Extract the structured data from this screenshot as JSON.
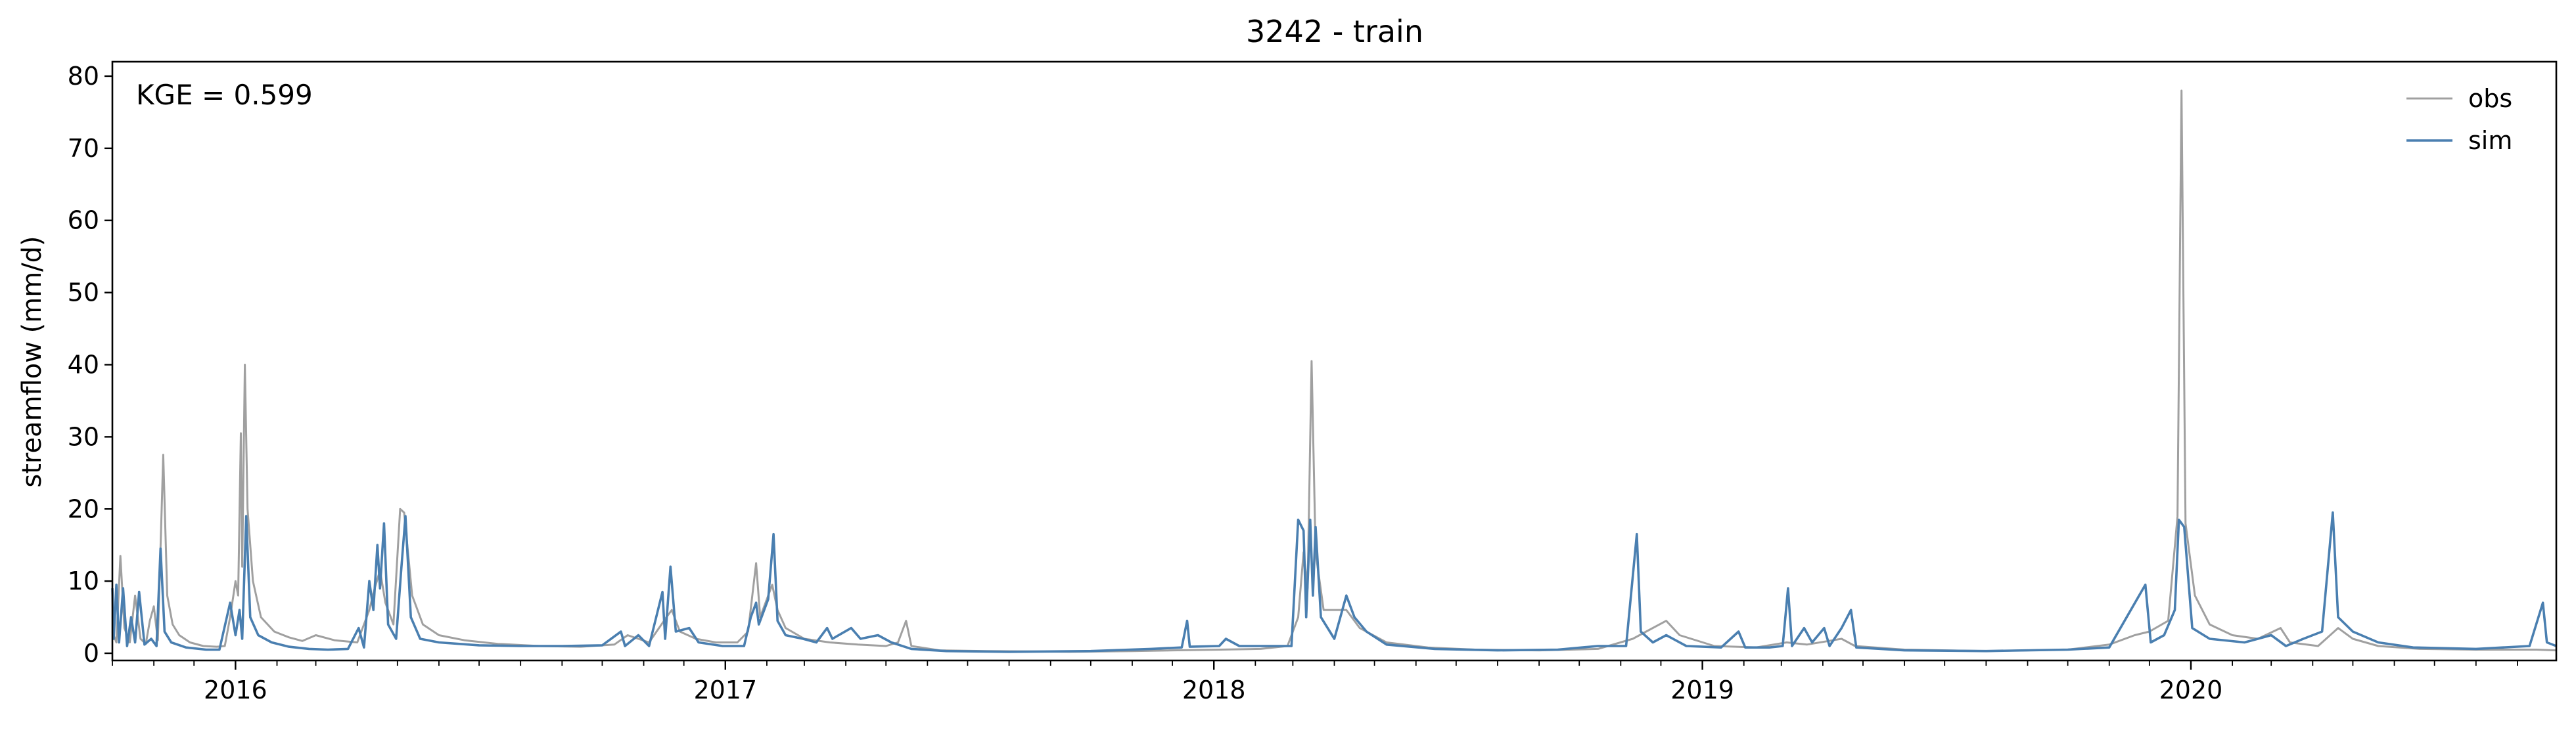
{
  "chart_data": {
    "type": "line",
    "title": "3242 - train",
    "xlabel": "",
    "ylabel": "streamflow (mm/d)",
    "annotation": "KGE = 0.599",
    "x_axis": {
      "type": "date",
      "range": [
        "2015-10-01",
        "2020-09-30"
      ],
      "tick_labels": [
        "2016",
        "2017",
        "2018",
        "2019",
        "2020"
      ],
      "tick_dates": [
        "2016-01-01",
        "2017-01-01",
        "2018-01-01",
        "2019-01-01",
        "2020-01-01"
      ],
      "minor_ticks": "monthly"
    },
    "y_axis": {
      "range": [
        -1,
        82
      ],
      "ticks": [
        0,
        10,
        20,
        30,
        40,
        50,
        60,
        70,
        80
      ],
      "tick_labels": [
        "0",
        "10",
        "20",
        "30",
        "40",
        "50",
        "60",
        "70",
        "80"
      ]
    },
    "grid": false,
    "legend": {
      "position": "top-right",
      "frame": false
    },
    "series": [
      {
        "name": "obs",
        "color": "#a0a0a0",
        "points": [
          [
            "2015-10-01",
            3.0
          ],
          [
            "2015-10-04",
            1.5
          ],
          [
            "2015-10-07",
            13.5
          ],
          [
            "2015-10-10",
            3.5
          ],
          [
            "2015-10-14",
            1.5
          ],
          [
            "2015-10-18",
            8.0
          ],
          [
            "2015-10-22",
            2.0
          ],
          [
            "2015-10-26",
            1.3
          ],
          [
            "2015-10-29",
            4.5
          ],
          [
            "2015-11-01",
            6.5
          ],
          [
            "2015-11-04",
            1.8
          ],
          [
            "2015-11-08",
            27.5
          ],
          [
            "2015-11-11",
            8.0
          ],
          [
            "2015-11-15",
            4.0
          ],
          [
            "2015-11-20",
            2.5
          ],
          [
            "2015-11-28",
            1.5
          ],
          [
            "2015-12-08",
            1.0
          ],
          [
            "2015-12-18",
            0.9
          ],
          [
            "2015-12-24",
            1.0
          ],
          [
            "2015-12-28",
            5.0
          ],
          [
            "2016-01-01",
            10.0
          ],
          [
            "2016-01-03",
            8.0
          ],
          [
            "2016-01-05",
            30.5
          ],
          [
            "2016-01-06",
            12.0
          ],
          [
            "2016-01-08",
            40.0
          ],
          [
            "2016-01-10",
            20.0
          ],
          [
            "2016-01-14",
            10.0
          ],
          [
            "2016-01-20",
            5.0
          ],
          [
            "2016-01-30",
            3.0
          ],
          [
            "2016-02-10",
            2.2
          ],
          [
            "2016-02-20",
            1.7
          ],
          [
            "2016-03-01",
            2.5
          ],
          [
            "2016-03-15",
            1.8
          ],
          [
            "2016-04-01",
            1.5
          ],
          [
            "2016-04-10",
            6.0
          ],
          [
            "2016-04-14",
            9.0
          ],
          [
            "2016-04-18",
            11.5
          ],
          [
            "2016-04-22",
            7.0
          ],
          [
            "2016-04-28",
            4.0
          ],
          [
            "2016-05-03",
            20.0
          ],
          [
            "2016-05-06",
            19.5
          ],
          [
            "2016-05-12",
            8.0
          ],
          [
            "2016-05-20",
            4.0
          ],
          [
            "2016-06-01",
            2.5
          ],
          [
            "2016-06-20",
            1.8
          ],
          [
            "2016-07-15",
            1.3
          ],
          [
            "2016-08-15",
            1.0
          ],
          [
            "2016-09-15",
            0.9
          ],
          [
            "2016-10-10",
            1.2
          ],
          [
            "2016-10-20",
            2.5
          ],
          [
            "2016-11-05",
            1.5
          ],
          [
            "2016-11-18",
            5.0
          ],
          [
            "2016-11-22",
            6.0
          ],
          [
            "2016-11-28",
            3.0
          ],
          [
            "2016-12-10",
            2.0
          ],
          [
            "2016-12-25",
            1.5
          ],
          [
            "2017-01-10",
            1.5
          ],
          [
            "2017-01-18",
            3.0
          ],
          [
            "2017-01-24",
            12.5
          ],
          [
            "2017-01-27",
            5.0
          ],
          [
            "2017-02-05",
            9.5
          ],
          [
            "2017-02-09",
            6.0
          ],
          [
            "2017-02-15",
            3.5
          ],
          [
            "2017-03-01",
            2.0
          ],
          [
            "2017-03-20",
            1.5
          ],
          [
            "2017-04-10",
            1.2
          ],
          [
            "2017-05-01",
            1.0
          ],
          [
            "2017-05-10",
            1.5
          ],
          [
            "2017-05-16",
            4.5
          ],
          [
            "2017-05-20",
            1.0
          ],
          [
            "2017-06-10",
            0.4
          ],
          [
            "2017-07-15",
            0.3
          ],
          [
            "2017-09-15",
            0.2
          ],
          [
            "2017-11-01",
            0.3
          ],
          [
            "2017-12-01",
            0.4
          ],
          [
            "2018-01-05",
            0.5
          ],
          [
            "2018-02-05",
            0.6
          ],
          [
            "2018-02-25",
            1.0
          ],
          [
            "2018-03-05",
            5.0
          ],
          [
            "2018-03-09",
            14.0
          ],
          [
            "2018-03-12",
            9.0
          ],
          [
            "2018-03-15",
            40.5
          ],
          [
            "2018-03-18",
            14.0
          ],
          [
            "2018-03-24",
            6.0
          ],
          [
            "2018-04-10",
            6.0
          ],
          [
            "2018-04-20",
            3.5
          ],
          [
            "2018-05-10",
            1.5
          ],
          [
            "2018-06-10",
            0.8
          ],
          [
            "2018-07-15",
            0.5
          ],
          [
            "2018-09-01",
            0.4
          ],
          [
            "2018-10-15",
            0.6
          ],
          [
            "2018-11-10",
            2.0
          ],
          [
            "2018-11-20",
            3.0
          ],
          [
            "2018-12-05",
            4.5
          ],
          [
            "2018-12-15",
            2.5
          ],
          [
            "2019-01-10",
            1.0
          ],
          [
            "2019-02-10",
            0.8
          ],
          [
            "2019-03-05",
            1.5
          ],
          [
            "2019-03-20",
            1.2
          ],
          [
            "2019-04-15",
            2.0
          ],
          [
            "2019-04-25",
            1.0
          ],
          [
            "2019-06-01",
            0.5
          ],
          [
            "2019-08-01",
            0.3
          ],
          [
            "2019-10-01",
            0.5
          ],
          [
            "2019-11-01",
            1.2
          ],
          [
            "2019-11-20",
            2.5
          ],
          [
            "2019-12-01",
            3.0
          ],
          [
            "2019-12-15",
            4.5
          ],
          [
            "2019-12-22",
            19.0
          ],
          [
            "2019-12-25",
            78.0
          ],
          [
            "2019-12-28",
            18.0
          ],
          [
            "2020-01-04",
            8.0
          ],
          [
            "2020-01-15",
            4.0
          ],
          [
            "2020-02-01",
            2.5
          ],
          [
            "2020-02-20",
            2.0
          ],
          [
            "2020-03-08",
            3.5
          ],
          [
            "2020-03-15",
            1.5
          ],
          [
            "2020-04-05",
            1.0
          ],
          [
            "2020-04-20",
            3.5
          ],
          [
            "2020-05-01",
            2.0
          ],
          [
            "2020-05-20",
            1.0
          ],
          [
            "2020-06-20",
            0.6
          ],
          [
            "2020-08-01",
            0.5
          ],
          [
            "2020-09-15",
            0.5
          ],
          [
            "2020-09-30",
            0.4
          ]
        ]
      },
      {
        "name": "sim",
        "color": "#4a7fb0",
        "points": [
          [
            "2015-10-01",
            9.0
          ],
          [
            "2015-10-02",
            2.0
          ],
          [
            "2015-10-04",
            9.5
          ],
          [
            "2015-10-06",
            1.5
          ],
          [
            "2015-10-09",
            9.0
          ],
          [
            "2015-10-12",
            1.0
          ],
          [
            "2015-10-15",
            5.0
          ],
          [
            "2015-10-18",
            1.5
          ],
          [
            "2015-10-21",
            8.5
          ],
          [
            "2015-10-25",
            1.2
          ],
          [
            "2015-10-30",
            2.0
          ],
          [
            "2015-11-03",
            1.0
          ],
          [
            "2015-11-06",
            14.5
          ],
          [
            "2015-11-09",
            3.0
          ],
          [
            "2015-11-14",
            1.5
          ],
          [
            "2015-11-25",
            0.8
          ],
          [
            "2015-12-10",
            0.5
          ],
          [
            "2015-12-20",
            0.5
          ],
          [
            "2015-12-28",
            7.0
          ],
          [
            "2016-01-01",
            2.5
          ],
          [
            "2016-01-04",
            6.0
          ],
          [
            "2016-01-06",
            2.0
          ],
          [
            "2016-01-09",
            19.0
          ],
          [
            "2016-01-12",
            5.0
          ],
          [
            "2016-01-18",
            2.5
          ],
          [
            "2016-01-28",
            1.5
          ],
          [
            "2016-02-10",
            0.9
          ],
          [
            "2016-02-25",
            0.6
          ],
          [
            "2016-03-10",
            0.5
          ],
          [
            "2016-03-25",
            0.6
          ],
          [
            "2016-04-02",
            3.5
          ],
          [
            "2016-04-06",
            0.8
          ],
          [
            "2016-04-10",
            10.0
          ],
          [
            "2016-04-13",
            6.0
          ],
          [
            "2016-04-16",
            15.0
          ],
          [
            "2016-04-18",
            9.0
          ],
          [
            "2016-04-21",
            18.0
          ],
          [
            "2016-04-24",
            4.0
          ],
          [
            "2016-04-30",
            2.0
          ],
          [
            "2016-05-04",
            12.0
          ],
          [
            "2016-05-07",
            19.0
          ],
          [
            "2016-05-11",
            5.0
          ],
          [
            "2016-05-18",
            2.0
          ],
          [
            "2016-06-01",
            1.5
          ],
          [
            "2016-07-01",
            1.1
          ],
          [
            "2016-08-01",
            1.0
          ],
          [
            "2016-09-01",
            1.0
          ],
          [
            "2016-10-01",
            1.1
          ],
          [
            "2016-10-15",
            3.0
          ],
          [
            "2016-10-18",
            1.0
          ],
          [
            "2016-10-28",
            2.5
          ],
          [
            "2016-11-05",
            1.0
          ],
          [
            "2016-11-15",
            8.5
          ],
          [
            "2016-11-17",
            2.0
          ],
          [
            "2016-11-21",
            12.0
          ],
          [
            "2016-11-25",
            3.0
          ],
          [
            "2016-12-05",
            3.5
          ],
          [
            "2016-12-12",
            1.5
          ],
          [
            "2016-12-30",
            1.0
          ],
          [
            "2017-01-15",
            1.0
          ],
          [
            "2017-01-20",
            5.0
          ],
          [
            "2017-01-24",
            7.0
          ],
          [
            "2017-01-26",
            4.0
          ],
          [
            "2017-02-02",
            7.5
          ],
          [
            "2017-02-06",
            16.5
          ],
          [
            "2017-02-09",
            4.5
          ],
          [
            "2017-02-15",
            2.5
          ],
          [
            "2017-02-28",
            2.0
          ],
          [
            "2017-03-10",
            1.5
          ],
          [
            "2017-03-18",
            3.5
          ],
          [
            "2017-03-22",
            2.0
          ],
          [
            "2017-04-05",
            3.5
          ],
          [
            "2017-04-12",
            2.0
          ],
          [
            "2017-04-25",
            2.5
          ],
          [
            "2017-05-05",
            1.5
          ],
          [
            "2017-05-20",
            0.6
          ],
          [
            "2017-06-15",
            0.3
          ],
          [
            "2017-08-01",
            0.2
          ],
          [
            "2017-10-01",
            0.3
          ],
          [
            "2017-11-15",
            0.6
          ],
          [
            "2017-12-08",
            0.8
          ],
          [
            "2017-12-12",
            4.5
          ],
          [
            "2017-12-14",
            0.9
          ],
          [
            "2018-01-05",
            1.0
          ],
          [
            "2018-01-10",
            2.0
          ],
          [
            "2018-01-20",
            1.0
          ],
          [
            "2018-02-10",
            1.0
          ],
          [
            "2018-02-28",
            1.0
          ],
          [
            "2018-03-05",
            18.5
          ],
          [
            "2018-03-09",
            17.0
          ],
          [
            "2018-03-11",
            5.0
          ],
          [
            "2018-03-14",
            18.5
          ],
          [
            "2018-03-16",
            8.0
          ],
          [
            "2018-03-18",
            17.5
          ],
          [
            "2018-03-22",
            5.0
          ],
          [
            "2018-04-01",
            2.0
          ],
          [
            "2018-04-10",
            8.0
          ],
          [
            "2018-04-16",
            5.0
          ],
          [
            "2018-04-25",
            3.0
          ],
          [
            "2018-05-10",
            1.2
          ],
          [
            "2018-06-15",
            0.6
          ],
          [
            "2018-08-01",
            0.4
          ],
          [
            "2018-09-15",
            0.5
          ],
          [
            "2018-10-15",
            1.0
          ],
          [
            "2018-11-05",
            1.0
          ],
          [
            "2018-11-13",
            16.5
          ],
          [
            "2018-11-16",
            3.0
          ],
          [
            "2018-11-25",
            1.5
          ],
          [
            "2018-12-05",
            2.5
          ],
          [
            "2018-12-20",
            1.0
          ],
          [
            "2019-01-15",
            0.8
          ],
          [
            "2019-01-28",
            3.0
          ],
          [
            "2019-02-02",
            0.8
          ],
          [
            "2019-02-20",
            0.8
          ],
          [
            "2019-03-02",
            1.0
          ],
          [
            "2019-03-06",
            9.0
          ],
          [
            "2019-03-09",
            1.0
          ],
          [
            "2019-03-18",
            3.5
          ],
          [
            "2019-03-24",
            1.5
          ],
          [
            "2019-04-02",
            3.5
          ],
          [
            "2019-04-06",
            1.0
          ],
          [
            "2019-04-15",
            3.5
          ],
          [
            "2019-04-22",
            6.0
          ],
          [
            "2019-04-26",
            0.8
          ],
          [
            "2019-06-01",
            0.4
          ],
          [
            "2019-08-01",
            0.3
          ],
          [
            "2019-10-01",
            0.5
          ],
          [
            "2019-11-01",
            0.8
          ],
          [
            "2019-11-28",
            9.5
          ],
          [
            "2019-12-02",
            1.5
          ],
          [
            "2019-12-12",
            2.5
          ],
          [
            "2019-12-20",
            6.0
          ],
          [
            "2019-12-23",
            18.5
          ],
          [
            "2019-12-27",
            17.5
          ],
          [
            "2020-01-02",
            3.5
          ],
          [
            "2020-01-15",
            2.0
          ],
          [
            "2020-02-10",
            1.5
          ],
          [
            "2020-03-01",
            2.5
          ],
          [
            "2020-03-12",
            1.0
          ],
          [
            "2020-03-25",
            2.0
          ],
          [
            "2020-04-08",
            3.0
          ],
          [
            "2020-04-16",
            19.5
          ],
          [
            "2020-04-20",
            5.0
          ],
          [
            "2020-05-01",
            3.0
          ],
          [
            "2020-05-20",
            1.5
          ],
          [
            "2020-06-15",
            0.8
          ],
          [
            "2020-08-01",
            0.6
          ],
          [
            "2020-09-10",
            1.0
          ],
          [
            "2020-09-20",
            7.0
          ],
          [
            "2020-09-23",
            1.5
          ],
          [
            "2020-09-30",
            1.0
          ]
        ]
      }
    ]
  }
}
